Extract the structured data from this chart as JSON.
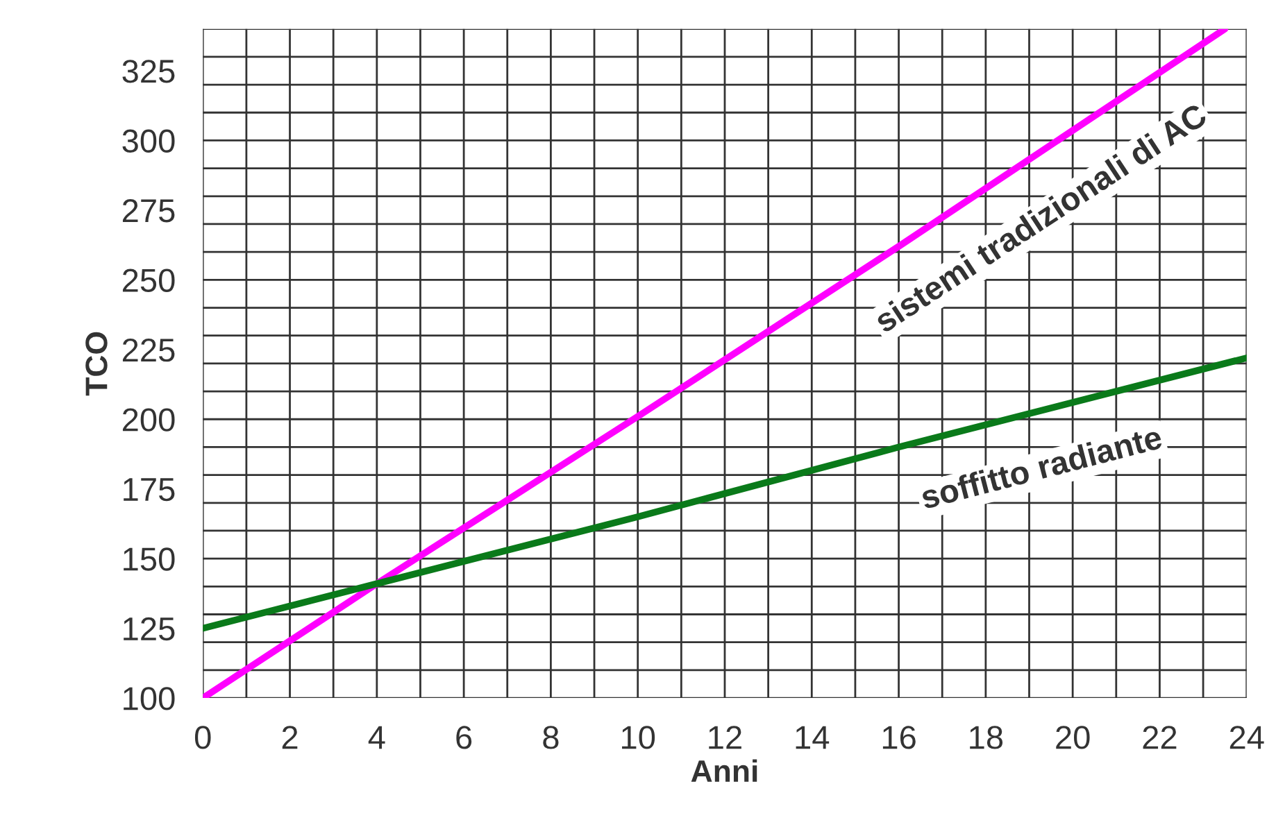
{
  "chart_data": {
    "type": "line",
    "xlabel": "Anni",
    "ylabel": "TCO",
    "series": [
      {
        "name": "sistemi tradizionali di AC",
        "color": "#ff00ff",
        "x": [
          0,
          4,
          10,
          16,
          23.5
        ],
        "values": [
          100,
          141,
          201,
          262,
          340
        ]
      },
      {
        "name": "soffitto radiante",
        "color": "#0a7a1a",
        "x": [
          0,
          4,
          10,
          16,
          24
        ],
        "values": [
          125,
          141,
          165,
          190,
          222
        ]
      }
    ],
    "xlim": [
      0,
      24
    ],
    "ylim": [
      100,
      340
    ],
    "xticks": [
      0,
      {
        "value": 1,
        "label": null
      },
      2,
      {
        "value": 3,
        "label": null
      },
      4,
      {
        "value": 5,
        "label": null
      },
      6,
      {
        "value": 7,
        "label": null
      },
      8,
      {
        "value": 9,
        "label": null
      },
      10,
      {
        "value": 11,
        "label": null
      },
      12,
      {
        "value": 13,
        "label": null
      },
      14,
      {
        "value": 15,
        "label": null
      },
      16,
      {
        "value": 17,
        "label": null
      },
      18,
      {
        "value": 19,
        "label": null
      },
      20,
      {
        "value": 21,
        "label": null
      },
      22,
      {
        "value": 23,
        "label": null
      },
      24
    ],
    "yticks": [
      100,
      125,
      150,
      175,
      200,
      225,
      250,
      275,
      300,
      325,
      {
        "value": 100,
        "label": null
      },
      {
        "value": 110,
        "label": null
      },
      {
        "value": 120,
        "label": null
      },
      {
        "value": 130,
        "label": null
      },
      {
        "value": 140,
        "label": null
      },
      {
        "value": 150,
        "label": null
      },
      {
        "value": 160,
        "label": null
      },
      {
        "value": 170,
        "label": null
      },
      {
        "value": 180,
        "label": null
      },
      {
        "value": 190,
        "label": null
      },
      {
        "value": 200,
        "label": null
      },
      {
        "value": 210,
        "label": null
      },
      {
        "value": 220,
        "label": null
      },
      {
        "value": 230,
        "label": null
      },
      {
        "value": 240,
        "label": null
      },
      {
        "value": 250,
        "label": null
      },
      {
        "value": 260,
        "label": null
      },
      {
        "value": 270,
        "label": null
      },
      {
        "value": 280,
        "label": null
      },
      {
        "value": 290,
        "label": null
      },
      {
        "value": 300,
        "label": null
      },
      {
        "value": 310,
        "label": null
      },
      {
        "value": 320,
        "label": null
      },
      {
        "value": 330,
        "label": null
      },
      {
        "value": 340,
        "label": null
      }
    ],
    "grid": true,
    "legend": false,
    "marker": "none",
    "line_style": "solid"
  }
}
